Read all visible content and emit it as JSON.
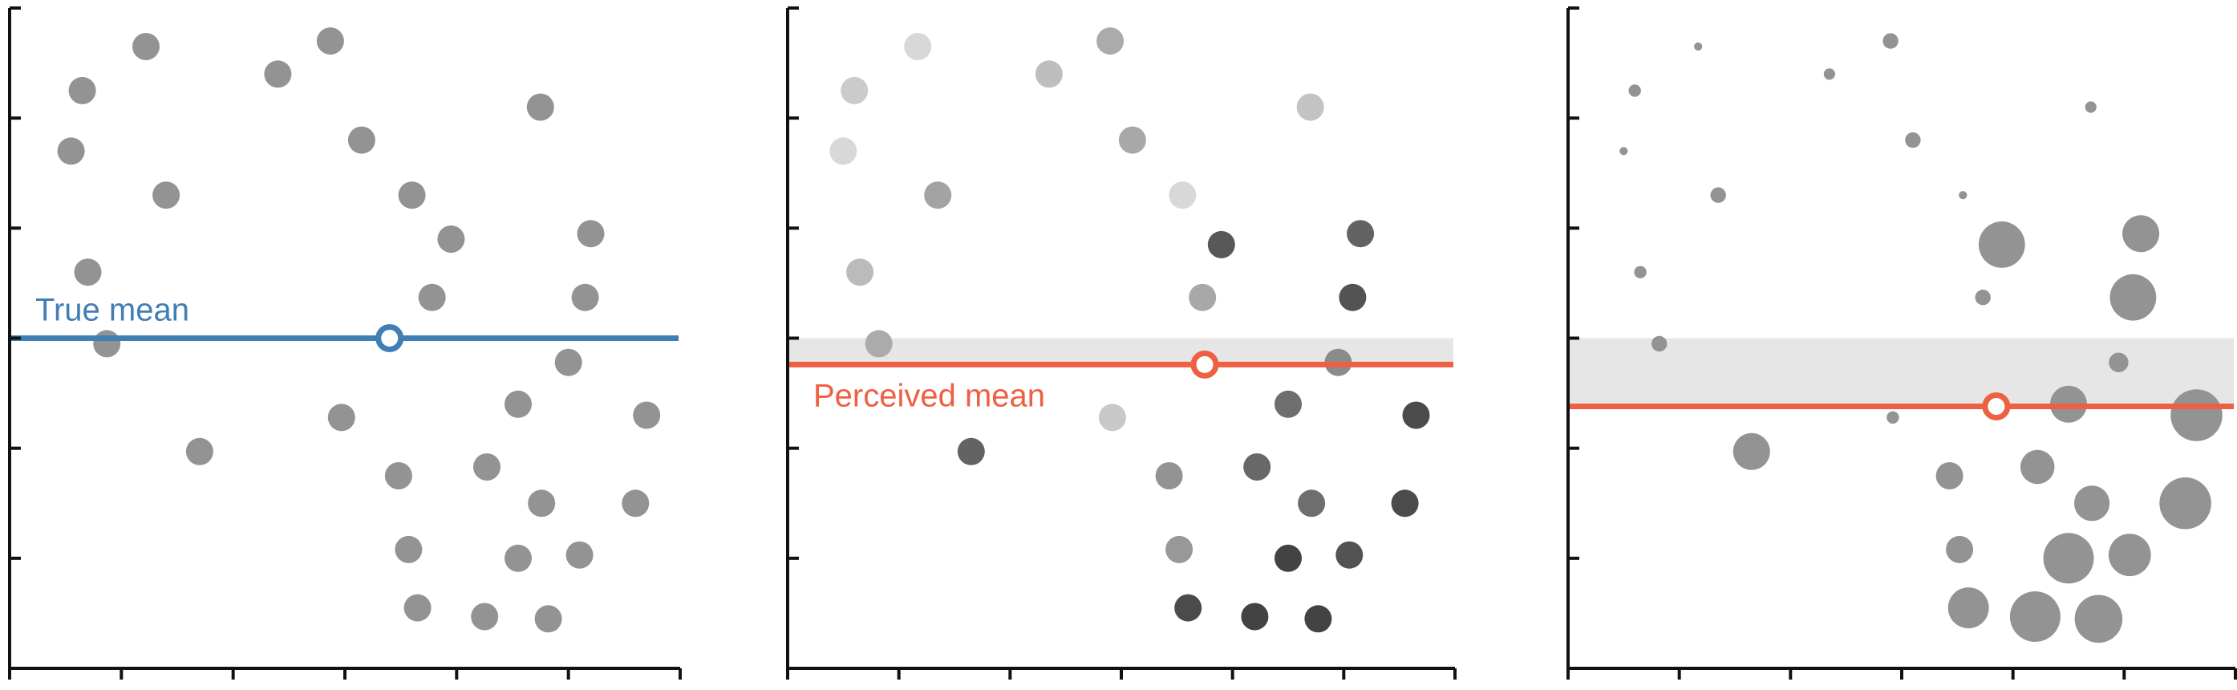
{
  "colors": {
    "axis": "#111111",
    "dot_base": "#8e8e8e",
    "true_mean": "#3f7fb6",
    "perceived_mean": "#ee6043",
    "band": "#e6e6e6"
  },
  "chart_data": [
    {
      "type": "scatter",
      "variant": "uniform",
      "xlim": [
        0,
        6
      ],
      "ylim": [
        0,
        6
      ],
      "grid": false,
      "tick_labels": false,
      "mean": {
        "x": 3.4,
        "y": 3.0,
        "label": "True mean",
        "kind": "true"
      },
      "points": [
        {
          "x": 0.65,
          "y": 5.25,
          "shade": 0.55,
          "size": 1.0
        },
        {
          "x": 1.22,
          "y": 5.65,
          "shade": 0.55,
          "size": 1.0
        },
        {
          "x": 2.4,
          "y": 5.4,
          "shade": 0.55,
          "size": 1.0
        },
        {
          "x": 2.87,
          "y": 5.7,
          "shade": 0.55,
          "size": 1.0
        },
        {
          "x": 4.75,
          "y": 5.1,
          "shade": 0.55,
          "size": 1.0
        },
        {
          "x": 0.55,
          "y": 4.7,
          "shade": 0.55,
          "size": 1.0
        },
        {
          "x": 3.15,
          "y": 4.8,
          "shade": 0.55,
          "size": 1.0
        },
        {
          "x": 1.4,
          "y": 4.3,
          "shade": 0.55,
          "size": 1.0
        },
        {
          "x": 3.6,
          "y": 4.3,
          "shade": 0.55,
          "size": 1.0
        },
        {
          "x": 3.95,
          "y": 3.9,
          "shade": 0.55,
          "size": 1.0
        },
        {
          "x": 5.2,
          "y": 3.95,
          "shade": 0.55,
          "size": 1.0
        },
        {
          "x": 0.7,
          "y": 3.6,
          "shade": 0.55,
          "size": 1.0
        },
        {
          "x": 3.78,
          "y": 3.37,
          "shade": 0.55,
          "size": 1.0
        },
        {
          "x": 5.15,
          "y": 3.37,
          "shade": 0.55,
          "size": 1.0
        },
        {
          "x": 0.87,
          "y": 2.95,
          "shade": 0.55,
          "size": 1.0
        },
        {
          "x": 5.0,
          "y": 2.78,
          "shade": 0.55,
          "size": 1.0
        },
        {
          "x": 2.97,
          "y": 2.28,
          "shade": 0.55,
          "size": 1.0
        },
        {
          "x": 4.55,
          "y": 2.4,
          "shade": 0.55,
          "size": 1.0
        },
        {
          "x": 5.7,
          "y": 2.3,
          "shade": 0.55,
          "size": 1.0
        },
        {
          "x": 1.7,
          "y": 1.97,
          "shade": 0.55,
          "size": 1.0
        },
        {
          "x": 3.48,
          "y": 1.75,
          "shade": 0.55,
          "size": 1.0
        },
        {
          "x": 4.27,
          "y": 1.83,
          "shade": 0.55,
          "size": 1.0
        },
        {
          "x": 4.76,
          "y": 1.5,
          "shade": 0.55,
          "size": 1.0
        },
        {
          "x": 5.6,
          "y": 1.5,
          "shade": 0.55,
          "size": 1.0
        },
        {
          "x": 3.57,
          "y": 1.08,
          "shade": 0.55,
          "size": 1.0
        },
        {
          "x": 4.55,
          "y": 1.0,
          "shade": 0.55,
          "size": 1.0
        },
        {
          "x": 5.1,
          "y": 1.03,
          "shade": 0.55,
          "size": 1.0
        },
        {
          "x": 3.65,
          "y": 0.55,
          "shade": 0.55,
          "size": 1.0
        },
        {
          "x": 4.25,
          "y": 0.47,
          "shade": 0.55,
          "size": 1.0
        },
        {
          "x": 4.82,
          "y": 0.45,
          "shade": 0.55,
          "size": 1.0
        }
      ]
    },
    {
      "type": "scatter",
      "variant": "shade-encoded",
      "xlim": [
        0,
        6
      ],
      "ylim": [
        0,
        6
      ],
      "grid": false,
      "tick_labels": false,
      "mean": {
        "x": 3.75,
        "y": 2.76,
        "label": "Perceived mean",
        "kind": "perceived"
      },
      "band": [
        2.76,
        3.0
      ],
      "points": [
        {
          "x": 0.6,
          "y": 5.25,
          "shade": 0.2,
          "size": 1.0
        },
        {
          "x": 1.17,
          "y": 5.65,
          "shade": 0.12,
          "size": 1.0
        },
        {
          "x": 2.35,
          "y": 5.4,
          "shade": 0.28,
          "size": 1.0
        },
        {
          "x": 2.9,
          "y": 5.7,
          "shade": 0.4,
          "size": 1.0
        },
        {
          "x": 4.7,
          "y": 5.1,
          "shade": 0.25,
          "size": 1.0
        },
        {
          "x": 0.5,
          "y": 4.7,
          "shade": 0.12,
          "size": 1.0
        },
        {
          "x": 3.1,
          "y": 4.8,
          "shade": 0.42,
          "size": 1.0
        },
        {
          "x": 1.35,
          "y": 4.3,
          "shade": 0.45,
          "size": 1.0
        },
        {
          "x": 3.55,
          "y": 4.3,
          "shade": 0.12,
          "size": 1.0
        },
        {
          "x": 3.9,
          "y": 3.85,
          "shade": 0.92,
          "size": 1.0
        },
        {
          "x": 5.15,
          "y": 3.95,
          "shade": 0.85,
          "size": 1.0
        },
        {
          "x": 0.65,
          "y": 3.6,
          "shade": 0.3,
          "size": 1.0
        },
        {
          "x": 3.73,
          "y": 3.37,
          "shade": 0.42,
          "size": 1.0
        },
        {
          "x": 5.08,
          "y": 3.37,
          "shade": 0.95,
          "size": 1.0
        },
        {
          "x": 0.82,
          "y": 2.95,
          "shade": 0.4,
          "size": 1.0
        },
        {
          "x": 4.95,
          "y": 2.78,
          "shade": 0.6,
          "size": 1.0
        },
        {
          "x": 2.92,
          "y": 2.28,
          "shade": 0.22,
          "size": 1.0
        },
        {
          "x": 4.5,
          "y": 2.4,
          "shade": 0.78,
          "size": 1.0
        },
        {
          "x": 5.65,
          "y": 2.3,
          "shade": 1.0,
          "size": 1.0
        },
        {
          "x": 1.65,
          "y": 1.97,
          "shade": 0.85,
          "size": 1.0
        },
        {
          "x": 3.43,
          "y": 1.75,
          "shade": 0.55,
          "size": 1.0
        },
        {
          "x": 4.22,
          "y": 1.83,
          "shade": 0.82,
          "size": 1.0
        },
        {
          "x": 4.71,
          "y": 1.5,
          "shade": 0.78,
          "size": 1.0
        },
        {
          "x": 5.55,
          "y": 1.5,
          "shade": 1.0,
          "size": 1.0
        },
        {
          "x": 3.52,
          "y": 1.08,
          "shade": 0.52,
          "size": 1.0
        },
        {
          "x": 4.5,
          "y": 1.0,
          "shade": 1.05,
          "size": 1.0
        },
        {
          "x": 5.05,
          "y": 1.03,
          "shade": 0.95,
          "size": 1.0
        },
        {
          "x": 3.6,
          "y": 0.55,
          "shade": 1.0,
          "size": 1.0
        },
        {
          "x": 4.2,
          "y": 0.47,
          "shade": 1.05,
          "size": 1.0
        },
        {
          "x": 4.77,
          "y": 0.45,
          "shade": 1.05,
          "size": 1.0
        }
      ]
    },
    {
      "type": "scatter",
      "variant": "size-encoded",
      "xlim": [
        0,
        6
      ],
      "ylim": [
        0,
        6
      ],
      "grid": false,
      "tick_labels": false,
      "mean": {
        "x": 3.85,
        "y": 2.38,
        "label": "",
        "kind": "perceived"
      },
      "band": [
        2.38,
        3.0
      ],
      "points": [
        {
          "x": 0.6,
          "y": 5.25,
          "shade": 0.55,
          "size": 0.45
        },
        {
          "x": 1.17,
          "y": 5.65,
          "shade": 0.55,
          "size": 0.3
        },
        {
          "x": 2.35,
          "y": 5.4,
          "shade": 0.55,
          "size": 0.42
        },
        {
          "x": 2.9,
          "y": 5.7,
          "shade": 0.55,
          "size": 0.57
        },
        {
          "x": 4.7,
          "y": 5.1,
          "shade": 0.55,
          "size": 0.42
        },
        {
          "x": 0.5,
          "y": 4.7,
          "shade": 0.55,
          "size": 0.3
        },
        {
          "x": 3.1,
          "y": 4.8,
          "shade": 0.55,
          "size": 0.57
        },
        {
          "x": 1.35,
          "y": 4.3,
          "shade": 0.55,
          "size": 0.57
        },
        {
          "x": 3.55,
          "y": 4.3,
          "shade": 0.55,
          "size": 0.3
        },
        {
          "x": 3.9,
          "y": 3.85,
          "shade": 0.55,
          "size": 1.7
        },
        {
          "x": 5.15,
          "y": 3.95,
          "shade": 0.55,
          "size": 1.35
        },
        {
          "x": 0.65,
          "y": 3.6,
          "shade": 0.55,
          "size": 0.45
        },
        {
          "x": 3.73,
          "y": 3.37,
          "shade": 0.55,
          "size": 0.57
        },
        {
          "x": 5.08,
          "y": 3.37,
          "shade": 0.55,
          "size": 1.7
        },
        {
          "x": 0.82,
          "y": 2.95,
          "shade": 0.55,
          "size": 0.57
        },
        {
          "x": 4.95,
          "y": 2.78,
          "shade": 0.55,
          "size": 0.72
        },
        {
          "x": 2.92,
          "y": 2.28,
          "shade": 0.55,
          "size": 0.45
        },
        {
          "x": 4.5,
          "y": 2.4,
          "shade": 0.55,
          "size": 1.35
        },
        {
          "x": 5.65,
          "y": 2.3,
          "shade": 0.55,
          "size": 1.9
        },
        {
          "x": 1.65,
          "y": 1.97,
          "shade": 0.55,
          "size": 1.35
        },
        {
          "x": 3.43,
          "y": 1.75,
          "shade": 0.55,
          "size": 1.0
        },
        {
          "x": 4.22,
          "y": 1.83,
          "shade": 0.55,
          "size": 1.25
        },
        {
          "x": 4.71,
          "y": 1.5,
          "shade": 0.55,
          "size": 1.3
        },
        {
          "x": 5.55,
          "y": 1.5,
          "shade": 0.55,
          "size": 1.9
        },
        {
          "x": 3.52,
          "y": 1.08,
          "shade": 0.55,
          "size": 1.0
        },
        {
          "x": 4.5,
          "y": 1.0,
          "shade": 0.55,
          "size": 1.85
        },
        {
          "x": 5.05,
          "y": 1.03,
          "shade": 0.55,
          "size": 1.55
        },
        {
          "x": 3.6,
          "y": 0.55,
          "shade": 0.55,
          "size": 1.5
        },
        {
          "x": 4.2,
          "y": 0.47,
          "shade": 0.55,
          "size": 1.85
        },
        {
          "x": 4.77,
          "y": 0.45,
          "shade": 0.55,
          "size": 1.75
        }
      ]
    }
  ]
}
